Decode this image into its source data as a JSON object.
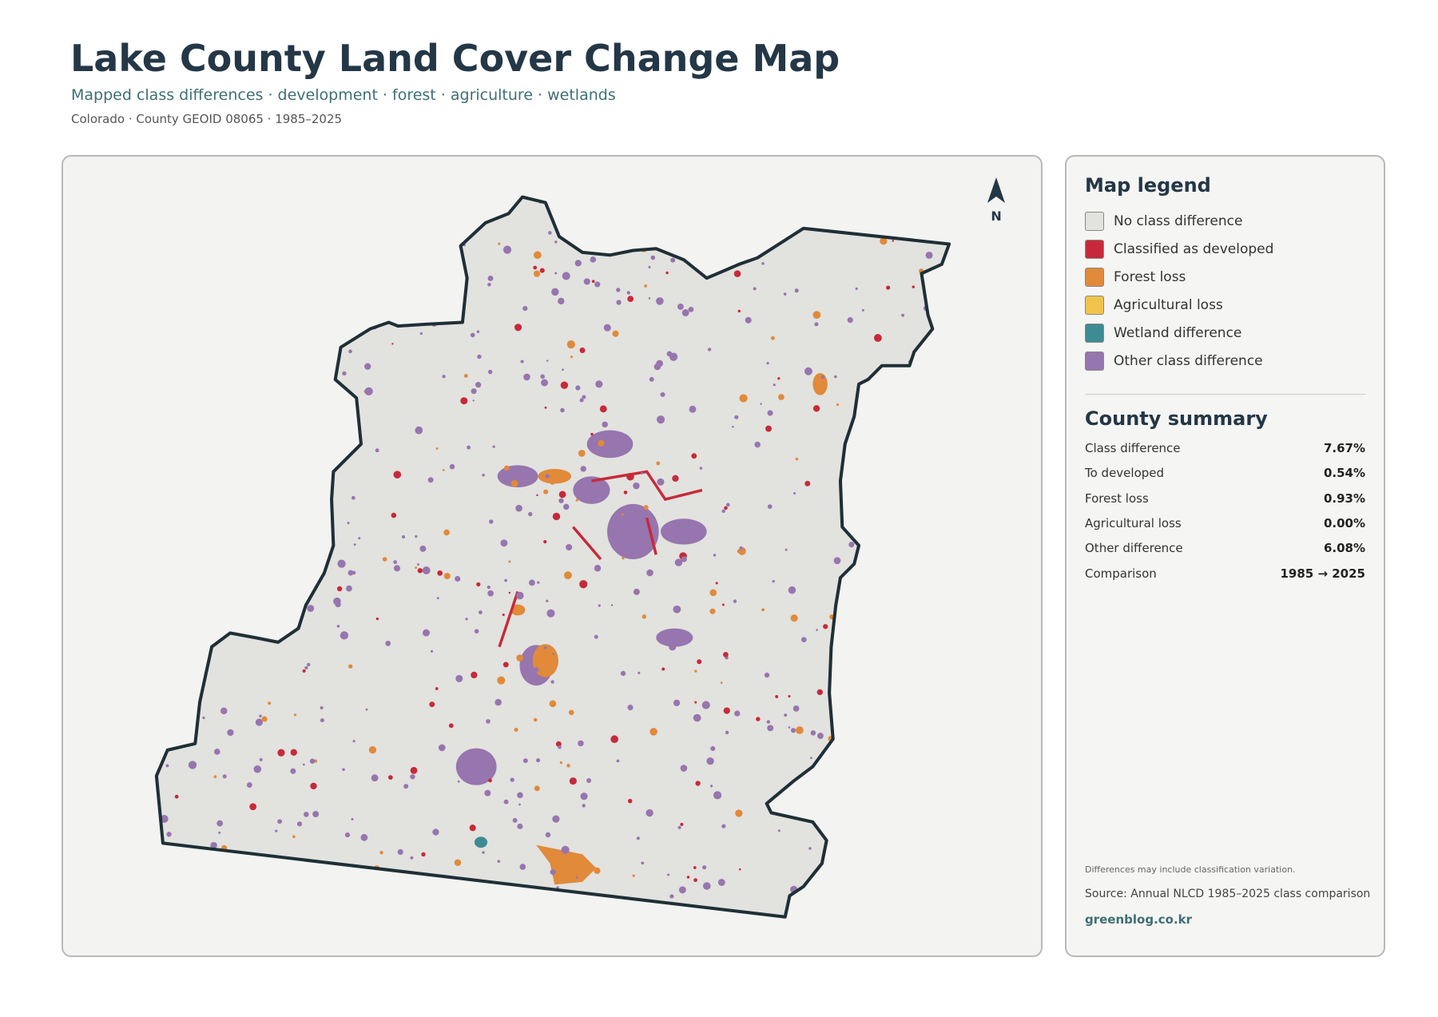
{
  "header": {
    "title": "Lake County Land Cover Change Map",
    "subtitle": "Mapped class differences · development · forest · agriculture · wetlands",
    "meta": "Colorado · County GEOID 08065 · 1985–2025"
  },
  "map": {
    "north_label": "N"
  },
  "legend": {
    "title": "Map legend",
    "items": [
      {
        "label": "No class difference",
        "color": "#e2e2df"
      },
      {
        "label": "Classified as developed",
        "color": "#c62a3a"
      },
      {
        "label": "Forest loss",
        "color": "#e08a3a"
      },
      {
        "label": "Agricultural loss",
        "color": "#f0c44c"
      },
      {
        "label": "Wetland difference",
        "color": "#3e8b94"
      },
      {
        "label": "Other class difference",
        "color": "#9775ae"
      }
    ]
  },
  "summary": {
    "title": "County summary",
    "rows": [
      {
        "label": "Class difference",
        "value": "7.67%"
      },
      {
        "label": "To developed",
        "value": "0.54%"
      },
      {
        "label": "Forest loss",
        "value": "0.93%"
      },
      {
        "label": "Agricultural loss",
        "value": "0.00%"
      },
      {
        "label": "Other difference",
        "value": "6.08%"
      },
      {
        "label": "Comparison",
        "value": "1985 → 2025"
      }
    ]
  },
  "notes": {
    "disclaimer": "Differences may include classification variation.",
    "source": "Source: Annual NLCD 1985–2025 class comparison",
    "site": "greenblog.co.kr"
  }
}
